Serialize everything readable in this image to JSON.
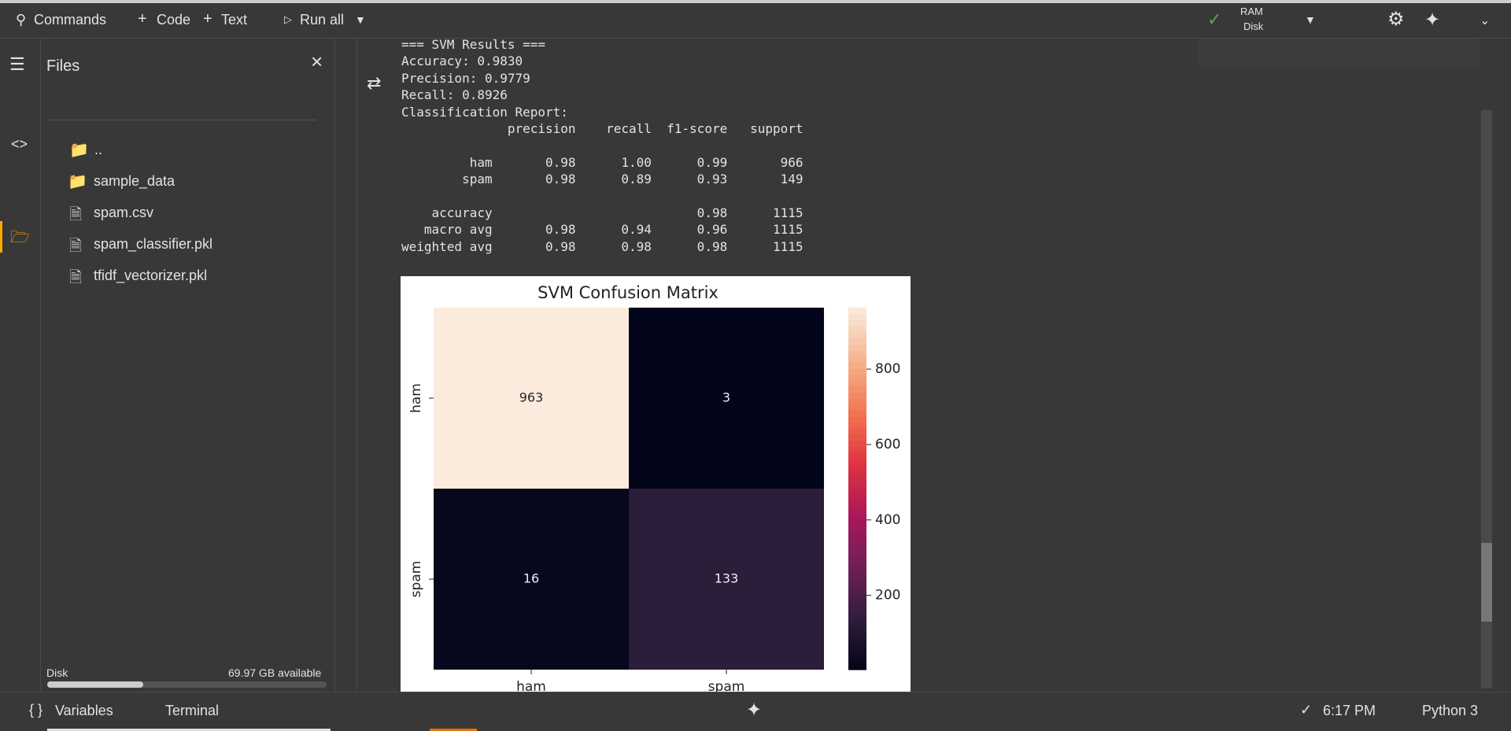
{
  "toolbar": {
    "commands": "Commands",
    "code": "Code",
    "text": "Text",
    "run_all": "Run all",
    "ram": "RAM",
    "disk": "Disk"
  },
  "sidebar": {
    "title": "Files",
    "files": [
      "..",
      "sample_data",
      "spam.csv",
      "spam_classifier.pkl",
      "tfidf_vectorizer.pkl"
    ],
    "disk_label": "Disk",
    "disk_available": "69.97 GB available"
  },
  "output": {
    "blocks": [
      [
        "=== SVM Results ===",
        "Accuracy: 0.9830",
        "Precision: 0.9779",
        "Recall: 0.8926",
        "Classification Report:",
        "              precision    recall  f1-score   support"
      ],
      [
        "         ham       0.98      1.00      0.99       966",
        "        spam       0.98      0.89      0.93       149"
      ],
      [
        "    accuracy                           0.98      1115",
        "   macro avg       0.98      0.94      0.96      1115",
        "weighted avg       0.98      0.98      0.98      1115"
      ]
    ]
  },
  "chart_data": {
    "type": "heatmap",
    "title": "SVM Confusion Matrix",
    "x_categories": [
      "ham",
      "spam"
    ],
    "y_categories": [
      "ham",
      "spam"
    ],
    "values": [
      [
        963,
        3
      ],
      [
        16,
        133
      ]
    ],
    "zlim": [
      3,
      963
    ],
    "zticks": [
      200,
      400,
      600,
      800
    ],
    "colormap": [
      "#03051a",
      "#2e1e3c",
      "#701f57",
      "#ad1759",
      "#e13342",
      "#f37651",
      "#f6b48f",
      "#faebdd"
    ]
  },
  "statusbar": {
    "variables": "Variables",
    "terminal": "Terminal",
    "time": "6:17 PM",
    "runtime": "Python 3"
  }
}
